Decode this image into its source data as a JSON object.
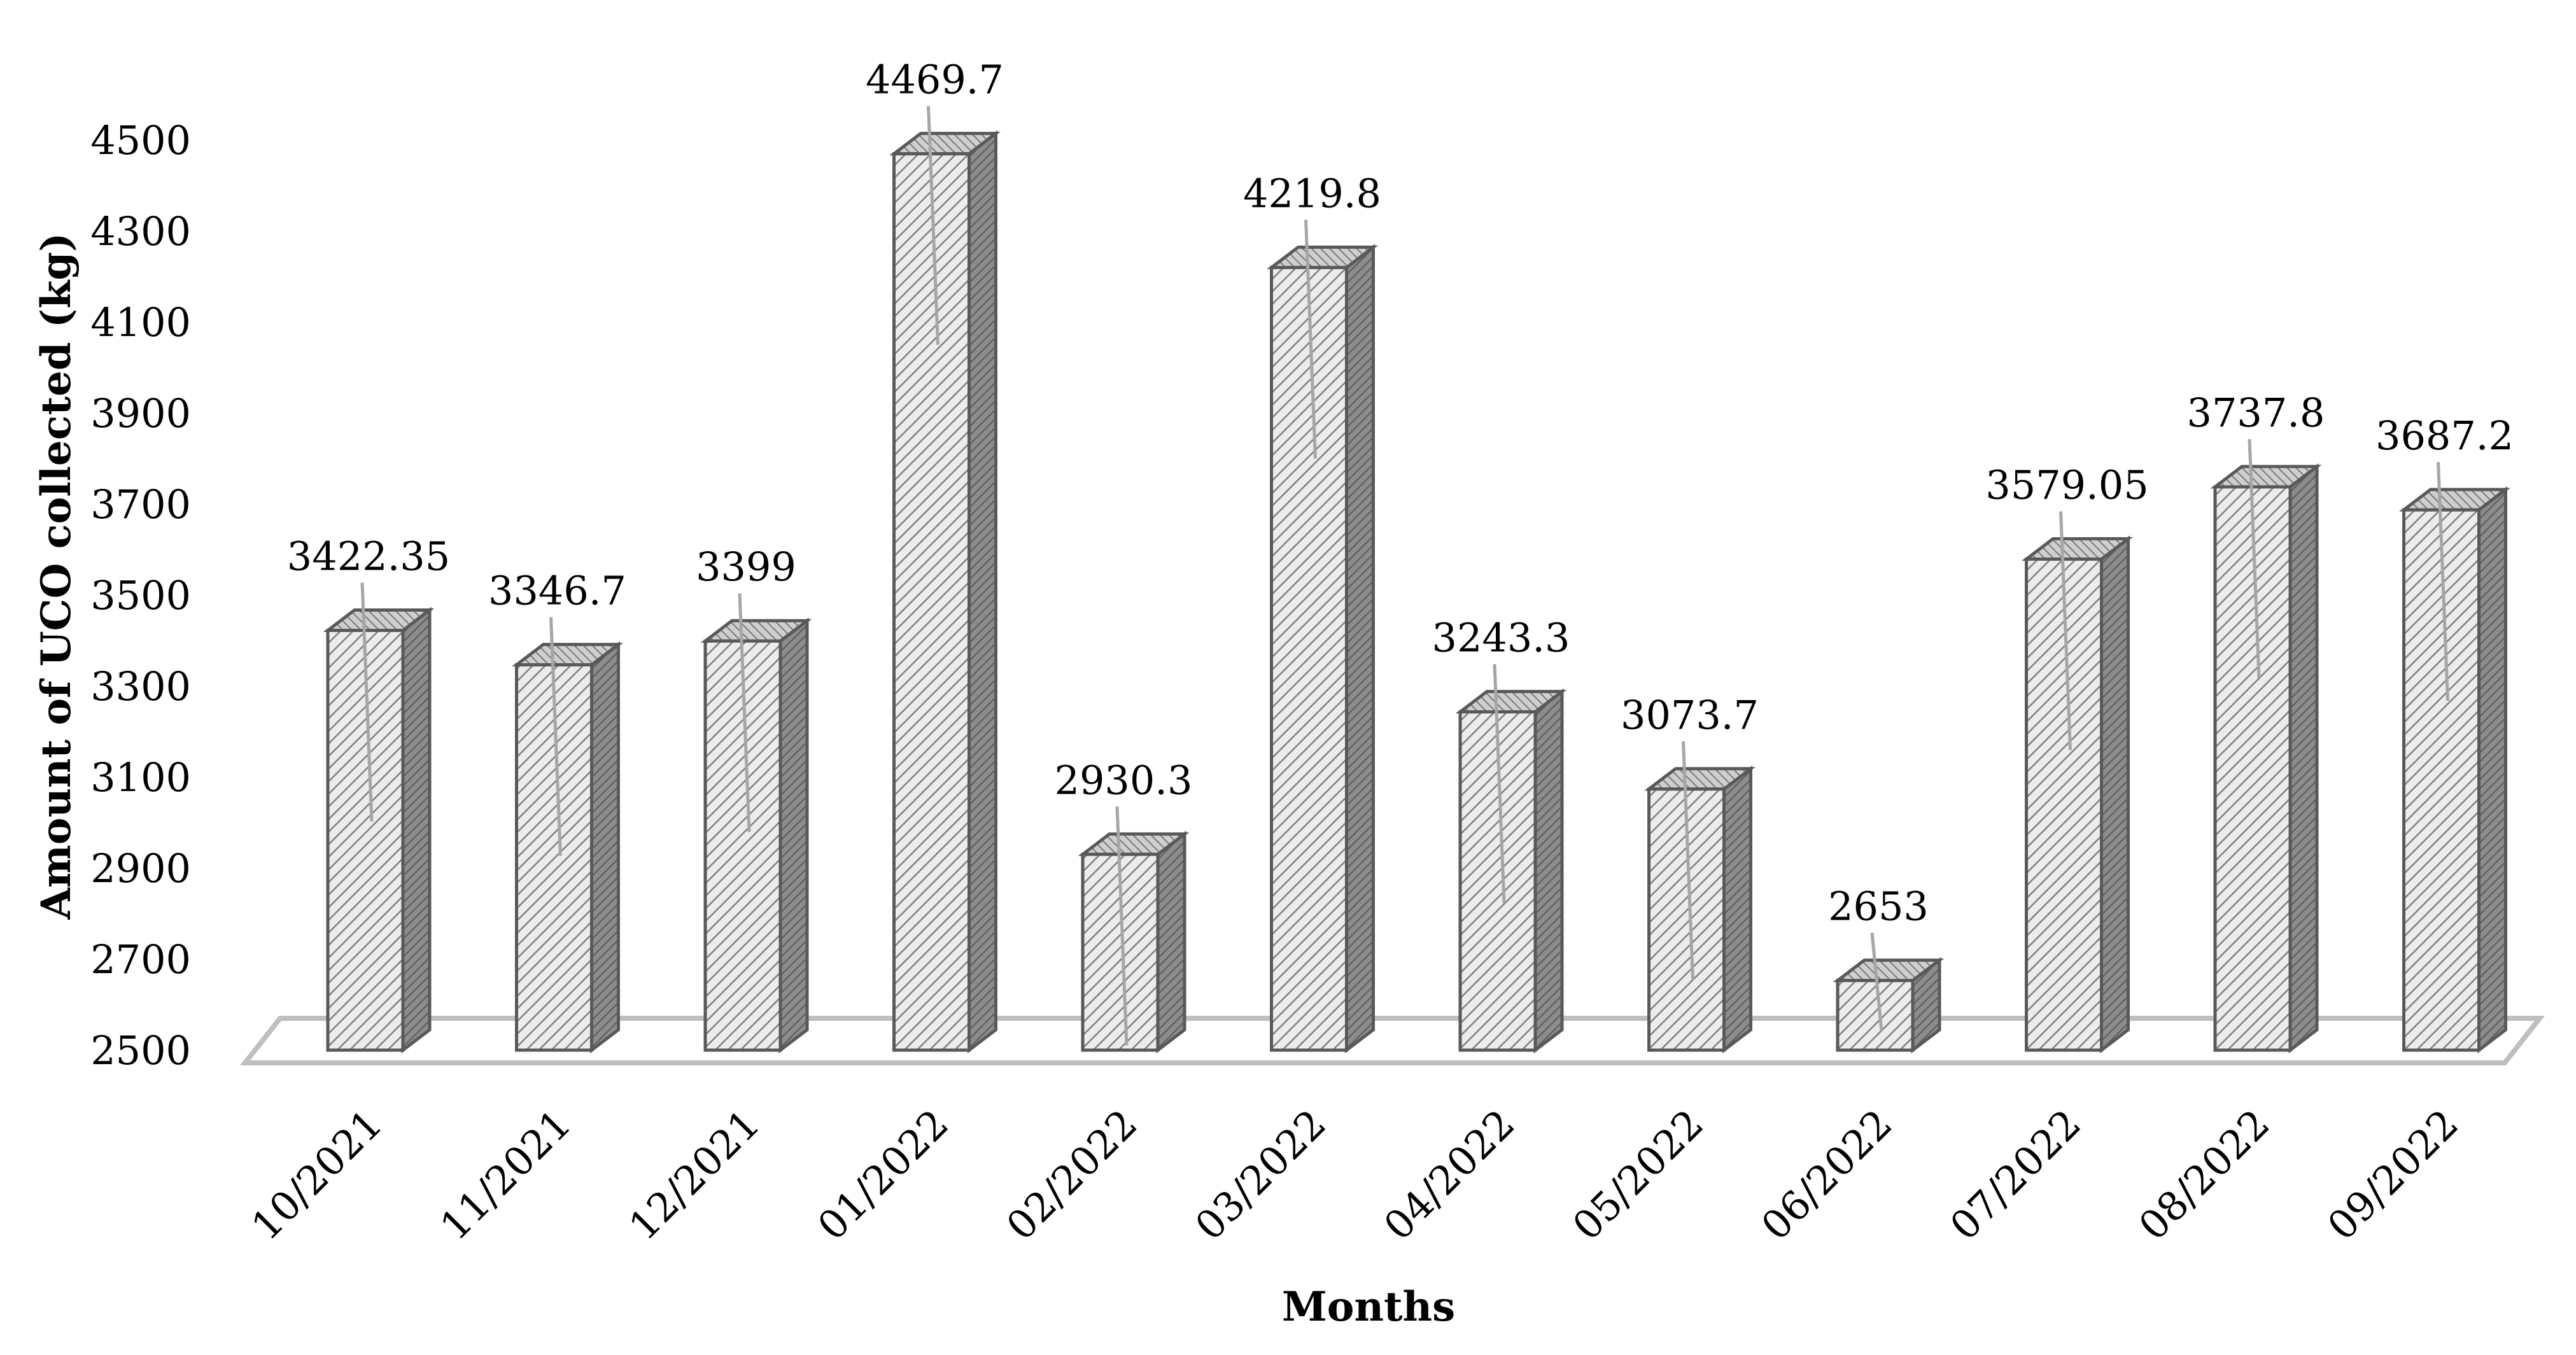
{
  "chart_data": {
    "type": "bar",
    "categories": [
      "10/2021",
      "11/2021",
      "12/2021",
      "01/2022",
      "02/2022",
      "03/2022",
      "04/2022",
      "05/2022",
      "06/2022",
      "07/2022",
      "08/2022",
      "09/2022"
    ],
    "values": [
      3422.35,
      3346.7,
      3399,
      4469.7,
      2930.3,
      4219.8,
      3243.3,
      3073.7,
      2653,
      3579.05,
      3737.8,
      3687.2
    ],
    "value_labels": [
      "3422.35",
      "3346.7",
      "3399",
      "4469.7",
      "2930.3",
      "4219.8",
      "3243.3",
      "3073.7",
      "2653",
      "3579.05",
      "3737.8",
      "3687.2"
    ],
    "yticks": [
      "2500",
      "2700",
      "2900",
      "3100",
      "3300",
      "3500",
      "3700",
      "3900",
      "4100",
      "4300",
      "4500"
    ],
    "xlabel": "Months",
    "ylabel": "Amount of UCO collected (kg)",
    "ylim": [
      2500,
      4500
    ],
    "grid": false,
    "legend": "none",
    "style": "3d-column",
    "colors": {
      "front": "#d9d9d9",
      "side": "#7f7f7f",
      "top": "#bfbfbf",
      "edge": "#595959",
      "floor": "#bfbfbf",
      "leader": "#a6a6a6"
    }
  }
}
